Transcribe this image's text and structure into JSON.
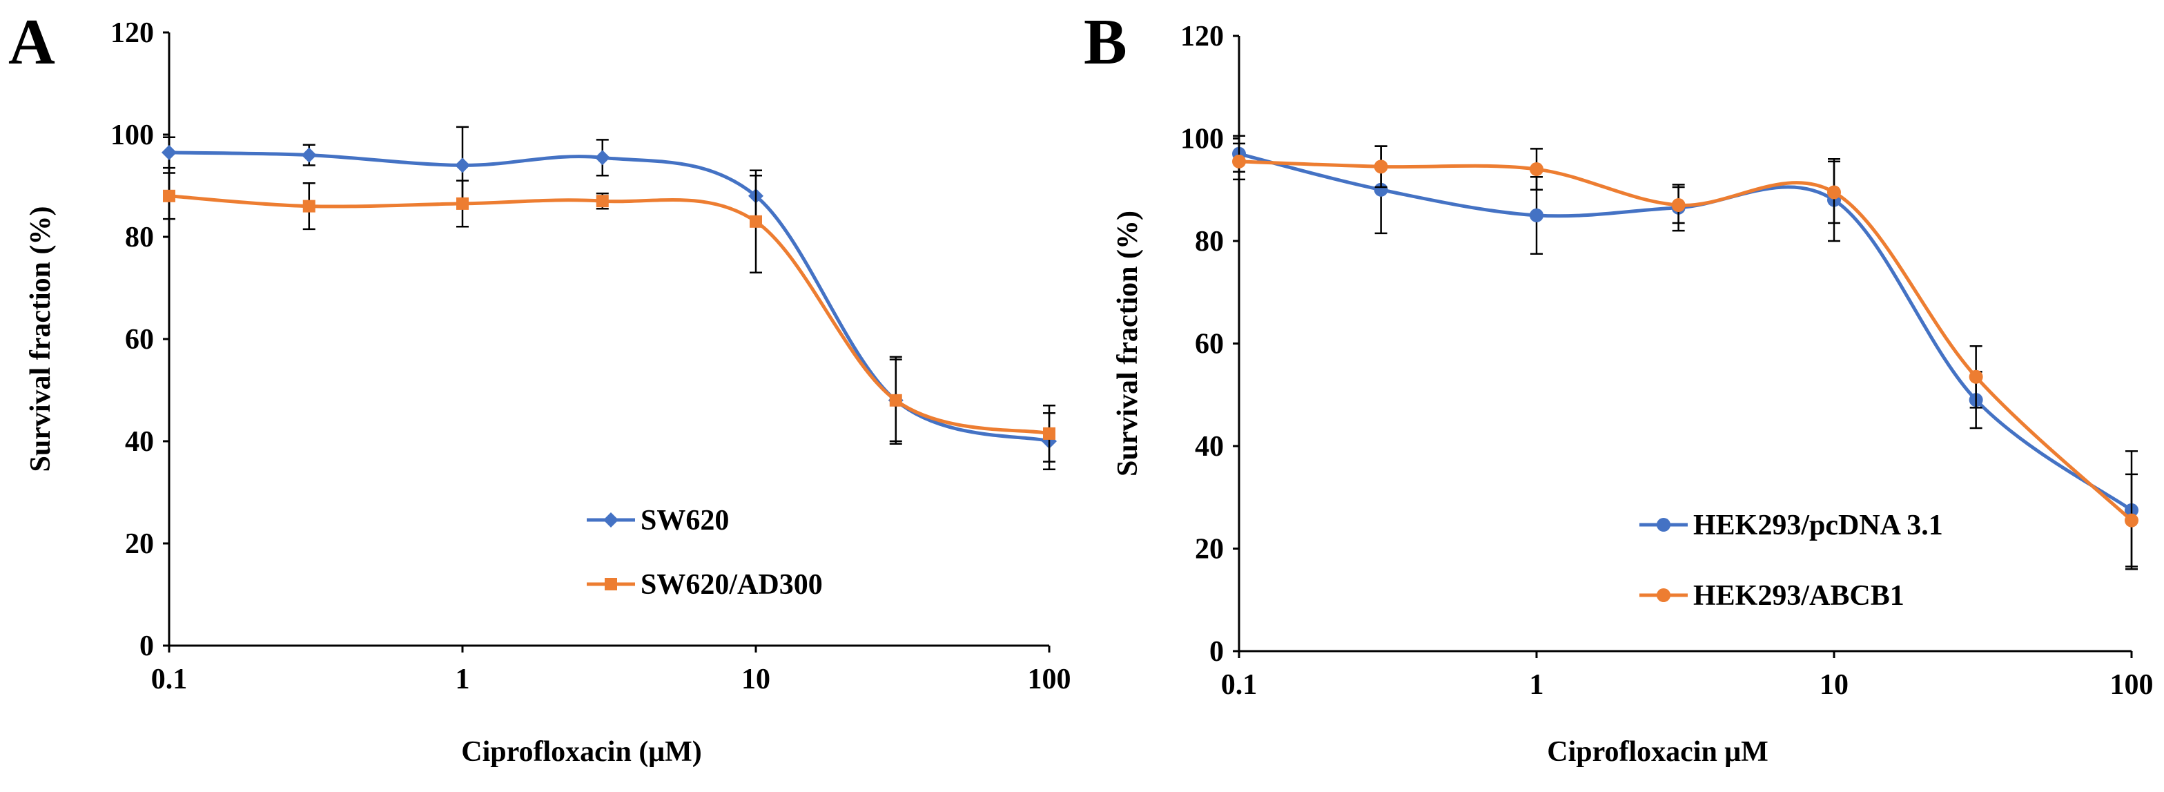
{
  "chart_data": [
    {
      "type": "line",
      "panel_label": "A",
      "xscale": "log",
      "x": [
        0.1,
        0.3,
        1,
        3,
        10,
        30,
        100
      ],
      "xticks": [
        0.1,
        1,
        10,
        100
      ],
      "xtick_labels": [
        "0.1",
        "1",
        "10",
        "100"
      ],
      "xlim": [
        0.1,
        100
      ],
      "ylim": [
        0,
        120
      ],
      "yticks": [
        0,
        20,
        40,
        60,
        80,
        100,
        120
      ],
      "ytick_labels": [
        "0",
        "20",
        "40",
        "60",
        "80",
        "100",
        "120"
      ],
      "xlabel": "Ciprofloxacin (μM)",
      "ylabel": "Survival fraction (%)",
      "legend_position": "lower-center",
      "series": [
        {
          "name": "SW620",
          "marker": "diamond",
          "color": "#4472C4",
          "values": [
            96.5,
            96,
            94,
            95.5,
            88,
            48,
            40
          ],
          "errors": [
            3,
            2,
            7.5,
            3.5,
            4,
            8,
            5.5
          ]
        },
        {
          "name": "SW620/AD300",
          "marker": "square",
          "color": "#ED7D31",
          "values": [
            88,
            86,
            86.5,
            87,
            83,
            48,
            41.5
          ],
          "errors": [
            4.5,
            4.5,
            4.5,
            1.5,
            10,
            8.5,
            5.5
          ]
        }
      ]
    },
    {
      "type": "line",
      "panel_label": "B",
      "xscale": "log",
      "x": [
        0.1,
        0.3,
        1,
        3,
        10,
        30,
        100
      ],
      "xticks": [
        0.1,
        1,
        10,
        100
      ],
      "xtick_labels": [
        "0.1",
        "1",
        "10",
        "100"
      ],
      "xlim": [
        0.1,
        100
      ],
      "ylim": [
        0,
        120
      ],
      "yticks": [
        0,
        20,
        40,
        60,
        80,
        100,
        120
      ],
      "ytick_labels": [
        "0",
        "20",
        "40",
        "60",
        "80",
        "100",
        "120"
      ],
      "xlabel": "Ciprofloxacin μM",
      "ylabel": "Survival fraction (%)",
      "legend_position": "lower-right",
      "series": [
        {
          "name": "HEK293/pcDNA 3.1",
          "marker": "circle",
          "color": "#4472C4",
          "values": [
            97,
            90,
            85,
            86.5,
            88,
            49,
            27.5
          ],
          "errors": [
            3.5,
            8.5,
            7.5,
            4.5,
            8,
            5.5,
            11.5
          ]
        },
        {
          "name": "HEK293/ABCB1",
          "marker": "circle",
          "color": "#ED7D31",
          "values": [
            95.5,
            94.5,
            94,
            87,
            89.5,
            53.5,
            25.5
          ],
          "errors": [
            3.5,
            4,
            4,
            3.5,
            6,
            6,
            9
          ]
        }
      ]
    }
  ]
}
